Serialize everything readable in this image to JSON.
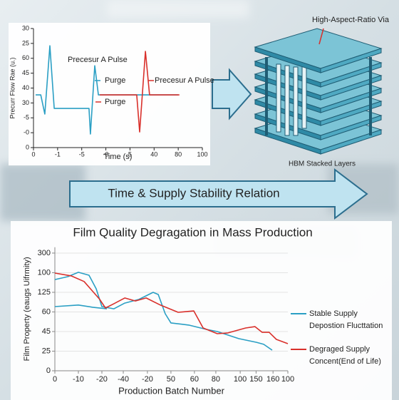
{
  "labels": {
    "via": "High-Aspect-Ratio Via",
    "stack": "HBM Stacked Layers",
    "banner": "Time & Supply Stability Relation"
  },
  "chart_data": [
    {
      "type": "line",
      "y_label": "Precurr Flow Rae (u.)",
      "x_label": "Time (s)",
      "xlim": [
        0,
        7
      ],
      "ylim": [
        0,
        8
      ],
      "xticks": [
        0,
        {
          "value": 1,
          "label": "-1"
        },
        {
          "value": 2,
          "label": "-5"
        },
        {
          "value": 3,
          "label": "-0"
        },
        {
          "value": 4,
          "label": "5"
        },
        {
          "value": 5,
          "label": "40"
        },
        {
          "value": 6,
          "label": "80"
        },
        {
          "value": 7,
          "label": "100"
        }
      ],
      "yticks": [
        0,
        {
          "value": 1,
          "label": "-0"
        },
        {
          "value": 2,
          "label": "-5"
        },
        {
          "value": 3,
          "label": "30"
        },
        {
          "value": 4,
          "label": "40"
        },
        {
          "value": 5,
          "label": "45"
        },
        {
          "value": 6,
          "label": "60"
        },
        {
          "value": 7,
          "label": "25"
        },
        {
          "value": 8,
          "label": "30"
        }
      ],
      "grid": false,
      "series": [
        {
          "color": "#2a9fc4",
          "x": [
            0.09,
            0.3,
            0.47,
            0.68,
            0.86,
            2.3,
            2.36,
            2.54,
            2.69,
            6.0
          ],
          "values": [
            3.54,
            3.54,
            2.25,
            6.84,
            2.63,
            2.63,
            0.91,
            5.5,
            3.54,
            3.54
          ]
        },
        {
          "color": "#d9302b",
          "x": [
            2.75,
            4.28,
            4.4,
            4.64,
            4.81,
            6.05
          ],
          "values": [
            3.54,
            3.54,
            1.05,
            6.46,
            3.54,
            3.54
          ]
        }
      ],
      "annotations": [
        {
          "text": "Precesur A Pulse"
        },
        {
          "text": "Purge",
          "color": "#2a9fc4"
        },
        {
          "text": "Purge",
          "color": "#d9302b"
        },
        {
          "text": "Precesur A Pulse",
          "color": "#d9302b"
        }
      ]
    },
    {
      "type": "line",
      "title": "Film Quality Degragation in Mass Production",
      "y_label": "Film Property (eaugs Uifrmity)",
      "x_label": "Production Batch Number",
      "xlim": [
        0,
        11
      ],
      "ylim": [
        0,
        6.3
      ],
      "xticks": [
        0,
        {
          "value": 1.11,
          "label": "-10"
        },
        {
          "value": 2.22,
          "label": "-20"
        },
        {
          "value": 3.23,
          "label": "-40"
        },
        {
          "value": 4.37,
          "label": "-20"
        },
        {
          "value": 5.48,
          "label": "50"
        },
        {
          "value": 6.59,
          "label": "60"
        },
        {
          "value": 7.6,
          "label": "80"
        },
        {
          "value": 8.75,
          "label": "100"
        },
        {
          "value": 9.5,
          "label": "150"
        },
        {
          "value": 10.3,
          "label": "160"
        },
        {
          "value": 11,
          "label": "100"
        }
      ],
      "yticks": [
        0,
        {
          "value": 1,
          "label": "25"
        },
        {
          "value": 2,
          "label": "45"
        },
        {
          "value": 3,
          "label": "60"
        },
        {
          "value": 4,
          "label": "125"
        },
        {
          "value": 5,
          "label": "100"
        },
        {
          "value": 6,
          "label": "300"
        }
      ],
      "grid": true,
      "series": [
        {
          "name": "Stable Supply",
          "name_detail": "Depostion Flucttation",
          "color": "#2a9fc4",
          "x": [
            0,
            1.11,
            1.78,
            2.46,
            null,
            0,
            0.61,
            1.11,
            1.61,
            1.95,
            2.22,
            2.79,
            3.3,
            3.97,
            4.64,
            4.88,
            5.21,
            5.48,
            6.32,
            7.16,
            7.67,
            8.68,
            9.52,
            9.86,
            10.26
          ],
          "values": [
            3.27,
            3.35,
            3.24,
            3.16,
            null,
            4.65,
            4.8,
            5.02,
            4.87,
            4.18,
            3.27,
            3.16,
            3.45,
            3.64,
            4.0,
            3.89,
            2.91,
            2.44,
            2.33,
            2.11,
            2.0,
            1.64,
            1.45,
            1.35,
            1.05
          ]
        },
        {
          "name": "Degraged Supply",
          "name_detail": "Concent(End of Life)",
          "name_detail_color": "#d9302b",
          "color": "#d9302b",
          "x": [
            0,
            0.77,
            1.38,
            2.12,
            2.39,
            2.79,
            3.3,
            3.8,
            4.31,
            4.98,
            5.82,
            6.56,
            7.0,
            7.67,
            8.17,
            9.01,
            9.45,
            9.79,
            10.12,
            10.46,
            11.0
          ],
          "values": [
            4.98,
            4.84,
            4.55,
            3.64,
            3.2,
            3.42,
            3.71,
            3.56,
            3.71,
            3.35,
            2.98,
            3.05,
            2.18,
            1.89,
            1.93,
            2.18,
            2.25,
            1.96,
            1.96,
            1.6,
            1.38
          ]
        }
      ]
    }
  ]
}
